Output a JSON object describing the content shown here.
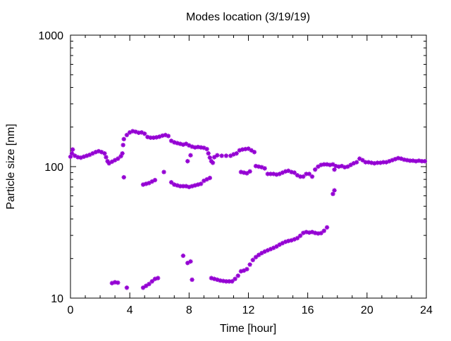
{
  "chart_data": {
    "type": "scatter",
    "title": "Modes location (3/19/19)",
    "xlabel": "Time [hour]",
    "ylabel": "Particle size [nm]",
    "xlim": [
      0,
      24
    ],
    "ylim": [
      10,
      1000
    ],
    "y_scale": "log",
    "x_ticks": [
      0,
      4,
      8,
      12,
      16,
      20,
      24
    ],
    "x_tick_labels": [
      "0",
      "4",
      "8",
      "12",
      "16",
      "20",
      "24"
    ],
    "y_ticks": [
      10,
      100,
      1000
    ],
    "y_tick_labels": [
      "10",
      "100",
      "1000"
    ],
    "grid": false,
    "legend": "none",
    "marker_color": "#9400d3",
    "series": [
      {
        "mode": "upper",
        "points": [
          [
            0.0,
            119
          ],
          [
            0.1,
            126
          ],
          [
            0.15,
            135
          ],
          [
            0.3,
            121
          ],
          [
            0.5,
            118
          ],
          [
            0.7,
            117
          ],
          [
            0.9,
            119
          ],
          [
            1.1,
            121
          ],
          [
            1.3,
            123
          ],
          [
            1.5,
            126
          ],
          [
            1.7,
            129
          ],
          [
            1.9,
            131
          ],
          [
            2.1,
            129
          ],
          [
            2.3,
            126
          ],
          [
            2.4,
            118
          ],
          [
            2.5,
            110
          ],
          [
            2.6,
            106
          ],
          [
            2.8,
            109
          ],
          [
            3.0,
            112
          ],
          [
            3.2,
            115
          ],
          [
            3.4,
            120
          ],
          [
            3.5,
            126
          ],
          [
            3.55,
            146
          ],
          [
            3.6,
            162
          ],
          [
            3.8,
            174
          ],
          [
            4.0,
            182
          ],
          [
            4.2,
            186
          ],
          [
            4.4,
            184
          ],
          [
            4.6,
            181
          ],
          [
            4.8,
            182
          ],
          [
            5.0,
            178
          ],
          [
            5.2,
            168
          ],
          [
            5.4,
            166
          ],
          [
            5.6,
            166
          ],
          [
            5.8,
            167
          ],
          [
            6.0,
            169
          ],
          [
            6.2,
            172
          ],
          [
            6.4,
            174
          ],
          [
            6.6,
            171
          ],
          [
            6.8,
            157
          ],
          [
            7.0,
            153
          ],
          [
            7.2,
            151
          ],
          [
            7.4,
            149
          ],
          [
            7.6,
            147
          ],
          [
            7.8,
            149
          ],
          [
            8.0,
            145
          ],
          [
            8.2,
            142
          ],
          [
            8.4,
            140
          ],
          [
            8.6,
            141
          ],
          [
            8.8,
            140
          ],
          [
            9.0,
            139
          ],
          [
            9.2,
            136
          ],
          [
            9.3,
            126
          ],
          [
            9.4,
            117
          ],
          [
            9.5,
            110
          ],
          [
            9.6,
            107
          ],
          [
            9.7,
            118
          ],
          [
            9.9,
            122
          ],
          [
            10.2,
            121
          ],
          [
            10.5,
            121
          ],
          [
            10.8,
            121
          ],
          [
            11.0,
            124
          ],
          [
            11.2,
            126
          ],
          [
            11.4,
            133
          ],
          [
            11.6,
            135
          ],
          [
            11.8,
            136
          ],
          [
            12.0,
            137
          ],
          [
            12.2,
            133
          ],
          [
            12.4,
            129
          ],
          [
            12.5,
            101
          ],
          [
            12.7,
            100
          ],
          [
            12.9,
            99
          ],
          [
            13.1,
            97
          ],
          [
            13.3,
            88
          ],
          [
            13.5,
            88
          ],
          [
            13.7,
            88
          ],
          [
            13.9,
            87
          ],
          [
            14.1,
            88
          ],
          [
            14.3,
            90
          ],
          [
            14.5,
            92
          ],
          [
            14.7,
            93
          ],
          [
            14.9,
            91
          ],
          [
            15.1,
            90
          ],
          [
            15.3,
            86
          ],
          [
            15.5,
            84
          ],
          [
            15.7,
            84
          ],
          [
            15.9,
            88
          ],
          [
            16.1,
            88
          ],
          [
            16.3,
            84
          ],
          [
            16.5,
            95
          ],
          [
            16.7,
            100
          ],
          [
            16.9,
            103
          ],
          [
            17.1,
            104
          ],
          [
            17.3,
            104
          ],
          [
            17.5,
            103
          ],
          [
            17.7,
            104
          ],
          [
            17.8,
            95
          ],
          [
            17.9,
            101
          ],
          [
            18.1,
            100
          ],
          [
            18.3,
            101
          ],
          [
            18.5,
            99
          ],
          [
            18.7,
            100
          ],
          [
            18.9,
            103
          ],
          [
            19.1,
            106
          ],
          [
            19.3,
            108
          ],
          [
            19.5,
            115
          ],
          [
            19.7,
            112
          ],
          [
            19.9,
            108
          ],
          [
            20.1,
            108
          ],
          [
            20.3,
            107
          ],
          [
            20.5,
            106
          ],
          [
            20.7,
            107
          ],
          [
            20.9,
            107
          ],
          [
            21.1,
            108
          ],
          [
            21.3,
            108
          ],
          [
            21.5,
            110
          ],
          [
            21.7,
            112
          ],
          [
            21.9,
            114
          ],
          [
            22.1,
            116
          ],
          [
            22.3,
            115
          ],
          [
            22.5,
            113
          ],
          [
            22.7,
            112
          ],
          [
            22.9,
            111
          ],
          [
            23.1,
            111
          ],
          [
            23.3,
            110
          ],
          [
            23.5,
            111
          ],
          [
            23.7,
            110
          ],
          [
            23.9,
            110
          ]
        ]
      },
      {
        "mode": "middle",
        "points": [
          [
            3.6,
            83
          ],
          [
            4.9,
            73
          ],
          [
            5.1,
            74
          ],
          [
            5.3,
            75
          ],
          [
            5.5,
            77
          ],
          [
            5.7,
            79
          ],
          [
            6.3,
            91
          ],
          [
            6.8,
            76
          ],
          [
            7.0,
            73
          ],
          [
            7.2,
            72
          ],
          [
            7.4,
            71
          ],
          [
            7.6,
            71
          ],
          [
            7.8,
            71
          ],
          [
            8.0,
            70
          ],
          [
            8.2,
            71
          ],
          [
            8.4,
            72
          ],
          [
            8.6,
            73
          ],
          [
            8.8,
            74
          ],
          [
            9.0,
            78
          ],
          [
            9.2,
            80
          ],
          [
            9.4,
            82
          ],
          [
            7.9,
            110
          ],
          [
            8.1,
            122
          ],
          [
            11.5,
            91
          ],
          [
            11.7,
            90
          ],
          [
            11.9,
            89
          ],
          [
            12.1,
            92
          ],
          [
            17.7,
            62
          ],
          [
            17.8,
            66
          ]
        ]
      },
      {
        "mode": "lower",
        "points": [
          [
            2.8,
            13
          ],
          [
            3.0,
            13.2
          ],
          [
            3.2,
            13.1
          ],
          [
            3.8,
            12
          ],
          [
            4.9,
            12
          ],
          [
            5.1,
            12.4
          ],
          [
            5.3,
            12.8
          ],
          [
            5.5,
            13.4
          ],
          [
            5.7,
            14
          ],
          [
            5.9,
            14.2
          ],
          [
            7.6,
            21
          ],
          [
            7.9,
            18.5
          ],
          [
            8.1,
            19
          ],
          [
            8.2,
            13.8
          ],
          [
            9.5,
            14.2
          ],
          [
            9.7,
            14
          ],
          [
            9.9,
            13.8
          ],
          [
            10.1,
            13.6
          ],
          [
            10.3,
            13.5
          ],
          [
            10.5,
            13.4
          ],
          [
            10.7,
            13.4
          ],
          [
            10.9,
            13.4
          ],
          [
            11.1,
            14
          ],
          [
            11.3,
            14.8
          ],
          [
            11.5,
            16
          ],
          [
            11.7,
            16.2
          ],
          [
            11.9,
            16.6
          ],
          [
            12.1,
            18
          ],
          [
            12.3,
            19.5
          ],
          [
            12.5,
            20.5
          ],
          [
            12.7,
            21.3
          ],
          [
            12.9,
            22
          ],
          [
            13.1,
            22.6
          ],
          [
            13.3,
            23.1
          ],
          [
            13.5,
            23.6
          ],
          [
            13.7,
            24.1
          ],
          [
            13.9,
            24.7
          ],
          [
            14.1,
            25.5
          ],
          [
            14.3,
            26.2
          ],
          [
            14.5,
            26.8
          ],
          [
            14.7,
            27.2
          ],
          [
            14.9,
            27.5
          ],
          [
            15.1,
            28
          ],
          [
            15.3,
            28.6
          ],
          [
            15.5,
            29.8
          ],
          [
            15.7,
            31.3
          ],
          [
            15.9,
            31.8
          ],
          [
            16.1,
            31.5
          ],
          [
            16.3,
            31.8
          ],
          [
            16.5,
            31.3
          ],
          [
            16.7,
            31
          ],
          [
            16.9,
            31.2
          ],
          [
            17.1,
            32.5
          ],
          [
            17.3,
            34.5
          ]
        ]
      }
    ]
  }
}
